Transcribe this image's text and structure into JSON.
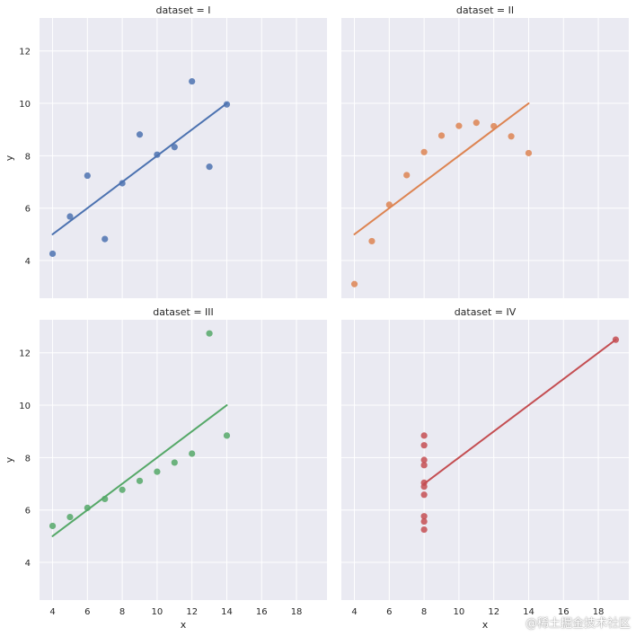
{
  "chart_data": {
    "type": "scatter",
    "layout": "2x2 facet grid with linear regression lines",
    "xlabel": "x",
    "ylabel": "y",
    "xlim": [
      3.25,
      19.75
    ],
    "ylim": [
      2.56,
      13.26
    ],
    "xticks": [
      4,
      6,
      8,
      10,
      12,
      14,
      16,
      18
    ],
    "yticks": [
      4,
      6,
      8,
      10,
      12
    ],
    "grid": true,
    "background": "#eaeaf2",
    "panels": [
      {
        "title": "dataset = I",
        "color": "#4c72b0",
        "x": [
          10,
          8,
          13,
          9,
          11,
          14,
          6,
          4,
          12,
          7,
          5
        ],
        "y": [
          8.04,
          6.95,
          7.58,
          8.81,
          8.33,
          9.96,
          7.24,
          4.26,
          10.84,
          4.82,
          5.68
        ],
        "fit": {
          "x": [
            4,
            14
          ],
          "y": [
            5.0,
            10.0
          ]
        }
      },
      {
        "title": "dataset = II",
        "color": "#dd8452",
        "x": [
          10,
          8,
          13,
          9,
          11,
          14,
          6,
          4,
          12,
          7,
          5
        ],
        "y": [
          9.14,
          8.14,
          8.74,
          8.77,
          9.26,
          8.1,
          6.13,
          3.1,
          9.13,
          7.26,
          4.74
        ],
        "fit": {
          "x": [
            4,
            14
          ],
          "y": [
            5.0,
            10.0
          ]
        }
      },
      {
        "title": "dataset = III",
        "color": "#55a868",
        "x": [
          10,
          8,
          13,
          9,
          11,
          14,
          6,
          4,
          12,
          7,
          5
        ],
        "y": [
          7.46,
          6.77,
          12.74,
          7.11,
          7.81,
          8.84,
          6.08,
          5.39,
          8.15,
          6.42,
          5.73
        ],
        "fit": {
          "x": [
            4,
            14
          ],
          "y": [
            5.0,
            10.0
          ]
        }
      },
      {
        "title": "dataset = IV",
        "color": "#c44e52",
        "x": [
          8,
          8,
          8,
          8,
          8,
          8,
          8,
          19,
          8,
          8,
          8
        ],
        "y": [
          6.58,
          5.76,
          7.71,
          8.84,
          8.47,
          7.04,
          5.25,
          12.5,
          5.56,
          7.91,
          6.89
        ],
        "fit": {
          "x": [
            8,
            19
          ],
          "y": [
            7.0,
            12.5
          ]
        }
      }
    ]
  },
  "watermark": "@稀土掘金技术社区"
}
